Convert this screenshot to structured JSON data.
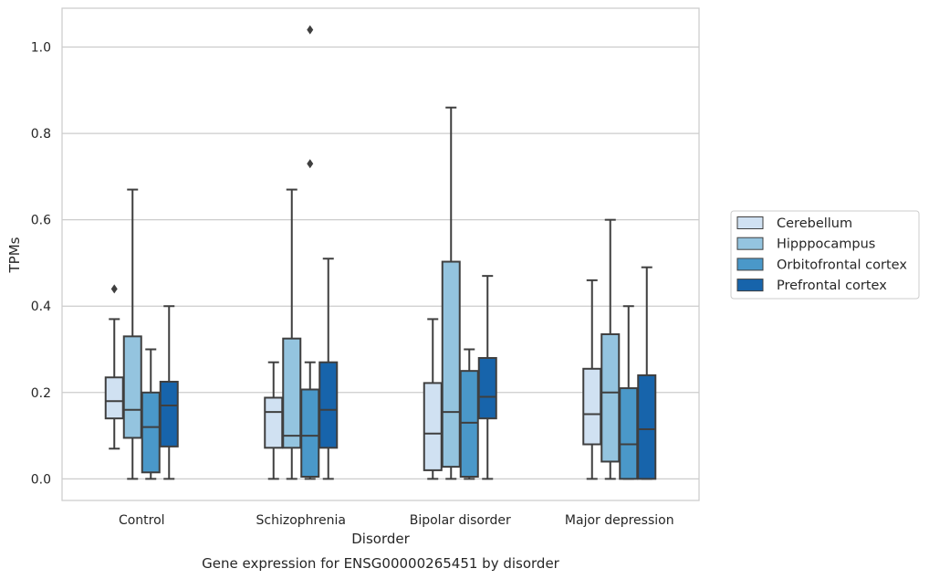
{
  "chart_data": {
    "type": "box",
    "title": "Gene expression for ENSG00000265451 by disorder",
    "xlabel": "Disorder",
    "ylabel": "TPMs",
    "ylim": [
      -0.05,
      1.09
    ],
    "yticks": [
      "0.0",
      "0.2",
      "0.4",
      "0.6",
      "0.8",
      "1.0"
    ],
    "grid": "horizontal",
    "legend_position": "right",
    "categories": [
      "Control",
      "Schizophrenia",
      "Bipolar disorder",
      "Major depression"
    ],
    "series": [
      {
        "name": "Cerebellum",
        "color": "#d0e1f2",
        "boxes": [
          {
            "min": 0.07,
            "q1": 0.14,
            "median": 0.18,
            "q3": 0.235,
            "max": 0.37,
            "outliers": [
              0.44
            ]
          },
          {
            "min": 0.0,
            "q1": 0.072,
            "median": 0.155,
            "q3": 0.188,
            "max": 0.27,
            "outliers": []
          },
          {
            "min": 0.0,
            "q1": 0.02,
            "median": 0.105,
            "q3": 0.222,
            "max": 0.37,
            "outliers": []
          },
          {
            "min": 0.0,
            "q1": 0.08,
            "median": 0.15,
            "q3": 0.255,
            "max": 0.46,
            "outliers": []
          }
        ]
      },
      {
        "name": "Hipppocampus",
        "color": "#94c4df",
        "boxes": [
          {
            "min": 0.0,
            "q1": 0.095,
            "median": 0.16,
            "q3": 0.33,
            "max": 0.67,
            "outliers": []
          },
          {
            "min": 0.0,
            "q1": 0.072,
            "median": 0.1,
            "q3": 0.325,
            "max": 0.67,
            "outliers": []
          },
          {
            "min": 0.0,
            "q1": 0.028,
            "median": 0.155,
            "q3": 0.503,
            "max": 0.86,
            "outliers": []
          },
          {
            "min": 0.0,
            "q1": 0.04,
            "median": 0.2,
            "q3": 0.335,
            "max": 0.6,
            "outliers": []
          }
        ]
      },
      {
        "name": "Orbitofrontal cortex",
        "color": "#4a98c9",
        "boxes": [
          {
            "min": 0.0,
            "q1": 0.015,
            "median": 0.12,
            "q3": 0.2,
            "max": 0.3,
            "outliers": []
          },
          {
            "min": 0.0,
            "q1": 0.005,
            "median": 0.1,
            "q3": 0.207,
            "max": 0.27,
            "outliers": [
              0.73,
              1.04
            ]
          },
          {
            "min": 0.0,
            "q1": 0.005,
            "median": 0.13,
            "q3": 0.25,
            "max": 0.3,
            "outliers": []
          },
          {
            "min": 0.0,
            "q1": 0.0,
            "median": 0.08,
            "q3": 0.21,
            "max": 0.4,
            "outliers": []
          }
        ]
      },
      {
        "name": "Prefrontal cortex",
        "color": "#1764ab",
        "boxes": [
          {
            "min": 0.0,
            "q1": 0.075,
            "median": 0.17,
            "q3": 0.225,
            "max": 0.4,
            "outliers": []
          },
          {
            "min": 0.0,
            "q1": 0.072,
            "median": 0.16,
            "q3": 0.27,
            "max": 0.51,
            "outliers": []
          },
          {
            "min": 0.0,
            "q1": 0.14,
            "median": 0.19,
            "q3": 0.28,
            "max": 0.47,
            "outliers": []
          },
          {
            "min": 0.0,
            "q1": 0.0,
            "median": 0.115,
            "q3": 0.24,
            "max": 0.49,
            "outliers": []
          }
        ]
      }
    ]
  }
}
